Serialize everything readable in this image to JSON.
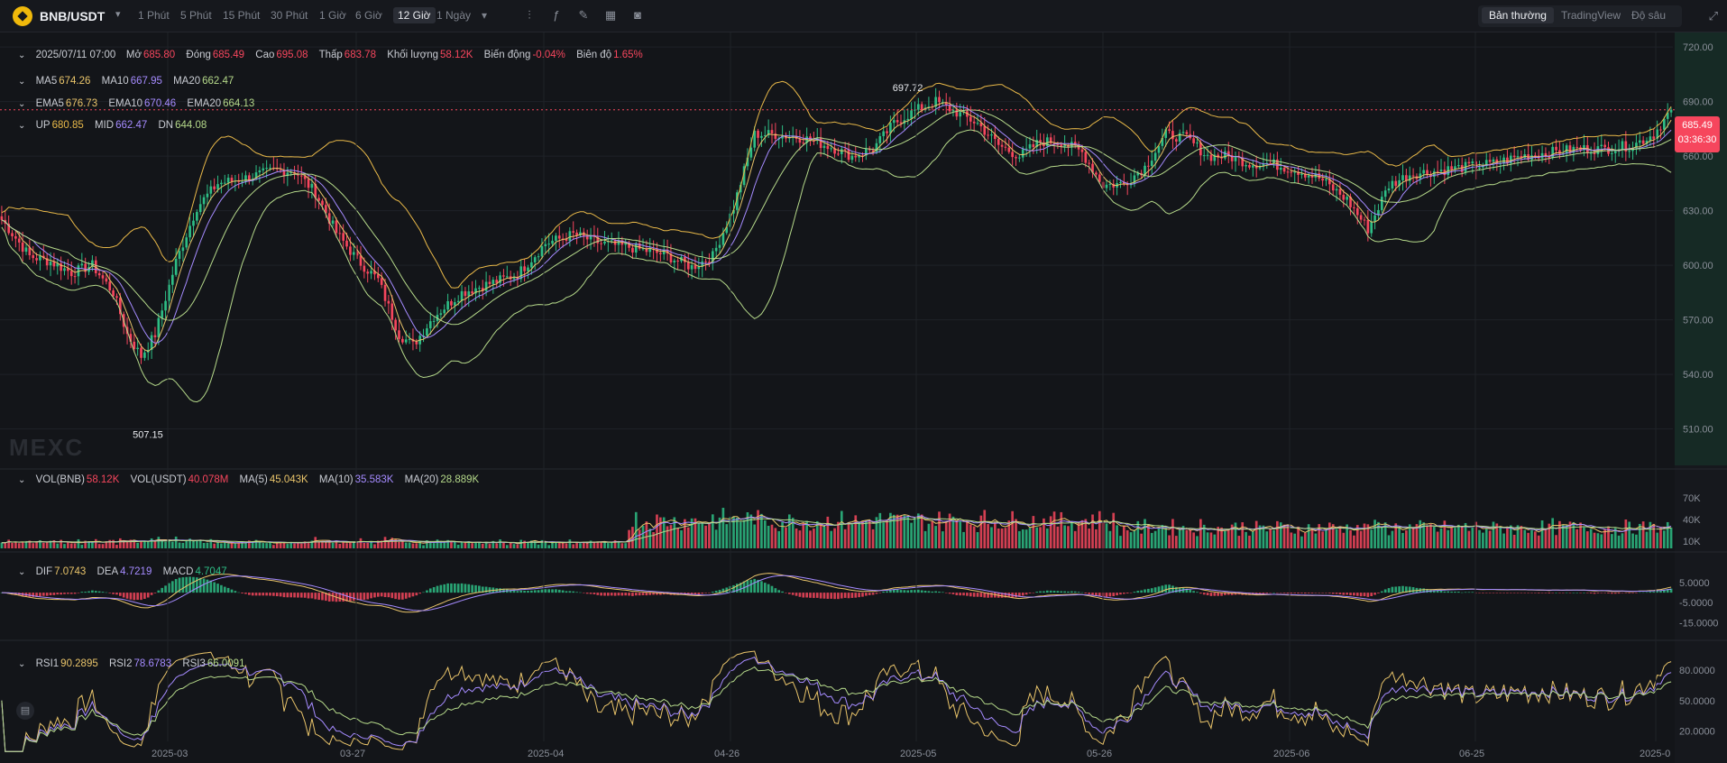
{
  "header": {
    "pair": "BNB/USDT",
    "timeframes": [
      "1 Phút",
      "5 Phút",
      "15 Phút",
      "30 Phút",
      "1 Giờ",
      "6 Giờ",
      "12 Giờ",
      "1 Ngày"
    ],
    "active_timeframe": "12 Giờ",
    "views": [
      "Bản thường",
      "TradingView",
      "Độ sâu"
    ],
    "active_view": "Bản thường"
  },
  "colors": {
    "up": "#2ebd85",
    "down": "#f6465d",
    "ma5": "#e9c46a",
    "ma10": "#a58bff",
    "ma20": "#b5d98a",
    "boll_up": "#e9b949",
    "boll_mid": "#a58bff",
    "boll_dn": "#b5d98a",
    "bg": "#131519",
    "grid": "#1f2228"
  },
  "ohlc": {
    "time": "2025/07/11 07:00",
    "open_label": "Mở",
    "open": "685.80",
    "close_label": "Đóng",
    "close": "685.49",
    "high_label": "Cao",
    "high": "695.08",
    "low_label": "Thấp",
    "low": "683.78",
    "vol_label": "Khối lượng",
    "vol": "58.12K",
    "chg_label": "Biến động",
    "chg": "-0.04%",
    "amp_label": "Biên độ",
    "amp": "1.65%"
  },
  "ma_legend": {
    "ma5": "674.26",
    "ma10": "667.95",
    "ma20": "662.47"
  },
  "ema_legend": {
    "ema5": "676.73",
    "ema10": "670.46",
    "ema20": "664.13"
  },
  "boll_legend": {
    "up": "680.85",
    "mid": "662.47",
    "dn": "644.08"
  },
  "vol_legend": {
    "bnb": "58.12K",
    "usdt": "40.078M",
    "ma5": "45.043K",
    "ma10": "35.583K",
    "ma20": "28.889K"
  },
  "macd_legend": {
    "dif": "7.0743",
    "dea": "4.7219",
    "macd": "4.7047"
  },
  "rsi_legend": {
    "rsi1": "90.2895",
    "rsi2": "78.6783",
    "rsi3": "66.0091"
  },
  "watermark": "MEXC",
  "price_tag": {
    "price": "685.49",
    "countdown": "03:36:30"
  },
  "chart_data": {
    "type": "candlestick",
    "price_axis": {
      "ticks": [
        "720.00",
        "690.00",
        "660.00",
        "630.00",
        "600.00",
        "570.00",
        "540.00",
        "510.00"
      ],
      "range": [
        490,
        728
      ]
    },
    "volume_axis": {
      "ticks": [
        "70K",
        "40K",
        "10K"
      ],
      "range": [
        0,
        80000
      ]
    },
    "macd_axis": {
      "ticks": [
        "5.0000",
        "-5.0000",
        "-15.0000"
      ],
      "range": [
        -22,
        14
      ]
    },
    "rsi_axis": {
      "ticks": [
        "80.0000",
        "50.0000",
        "20.0000"
      ],
      "range": [
        10,
        95
      ]
    },
    "x_ticks": [
      "2025-03",
      "03-27",
      "2025-04",
      "04-26",
      "2025-05",
      "05-26",
      "2025-06",
      "06-25",
      "2025-0"
    ],
    "annotations": {
      "high": "697.72",
      "low": "507.15"
    },
    "current_price": 685.49,
    "anchors": [
      [
        0,
        625
      ],
      [
        8,
        605
      ],
      [
        14,
        602
      ],
      [
        20,
        596
      ],
      [
        26,
        600
      ],
      [
        32,
        585
      ],
      [
        36,
        562
      ],
      [
        40,
        550
      ],
      [
        44,
        562
      ],
      [
        50,
        602
      ],
      [
        56,
        632
      ],
      [
        62,
        645
      ],
      [
        70,
        648
      ],
      [
        78,
        652
      ],
      [
        84,
        652
      ],
      [
        90,
        640
      ],
      [
        96,
        618
      ],
      [
        102,
        603
      ],
      [
        108,
        592
      ],
      [
        114,
        562
      ],
      [
        118,
        556
      ],
      [
        124,
        572
      ],
      [
        132,
        585
      ],
      [
        140,
        590
      ],
      [
        148,
        595
      ],
      [
        156,
        612
      ],
      [
        164,
        617
      ],
      [
        172,
        612
      ],
      [
        180,
        610
      ],
      [
        190,
        606
      ],
      [
        198,
        599
      ],
      [
        204,
        605
      ],
      [
        210,
        632
      ],
      [
        216,
        672
      ],
      [
        222,
        672
      ],
      [
        230,
        670
      ],
      [
        238,
        665
      ],
      [
        244,
        660
      ],
      [
        250,
        664
      ],
      [
        256,
        678
      ],
      [
        262,
        685
      ],
      [
        268,
        690
      ],
      [
        274,
        684
      ],
      [
        280,
        678
      ],
      [
        286,
        666
      ],
      [
        292,
        660
      ],
      [
        298,
        668
      ],
      [
        304,
        668
      ],
      [
        310,
        662
      ],
      [
        316,
        644
      ],
      [
        322,
        645
      ],
      [
        328,
        654
      ],
      [
        334,
        672
      ],
      [
        340,
        670
      ],
      [
        346,
        660
      ],
      [
        352,
        660
      ],
      [
        358,
        656
      ],
      [
        364,
        656
      ],
      [
        372,
        652
      ],
      [
        378,
        648
      ],
      [
        386,
        636
      ],
      [
        392,
        620
      ],
      [
        398,
        644
      ],
      [
        404,
        650
      ],
      [
        412,
        652
      ],
      [
        420,
        654
      ],
      [
        428,
        656
      ],
      [
        436,
        660
      ],
      [
        444,
        662
      ],
      [
        452,
        664
      ],
      [
        460,
        664
      ],
      [
        468,
        666
      ],
      [
        474,
        672
      ],
      [
        479,
        685.49
      ]
    ]
  }
}
